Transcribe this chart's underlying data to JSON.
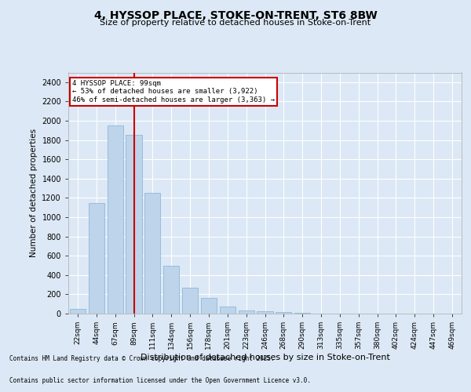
{
  "title_line1": "4, HYSSOP PLACE, STOKE-ON-TRENT, ST6 8BW",
  "title_line2": "Size of property relative to detached houses in Stoke-on-Trent",
  "xlabel": "Distribution of detached houses by size in Stoke-on-Trent",
  "ylabel": "Number of detached properties",
  "categories": [
    "22sqm",
    "44sqm",
    "67sqm",
    "89sqm",
    "111sqm",
    "134sqm",
    "156sqm",
    "178sqm",
    "201sqm",
    "223sqm",
    "246sqm",
    "268sqm",
    "290sqm",
    "313sqm",
    "335sqm",
    "357sqm",
    "380sqm",
    "402sqm",
    "424sqm",
    "447sqm",
    "469sqm"
  ],
  "values": [
    50,
    1150,
    1950,
    1850,
    1250,
    500,
    270,
    160,
    70,
    30,
    25,
    20,
    5,
    2,
    1,
    0,
    0,
    0,
    0,
    0,
    0
  ],
  "bar_color": "#bdd4ea",
  "bar_edge_color": "#8fb8d8",
  "vline_color": "#cc0000",
  "vline_x": 3.0,
  "annotation_text": "4 HYSSOP PLACE: 99sqm\n← 53% of detached houses are smaller (3,922)\n46% of semi-detached houses are larger (3,363) →",
  "annotation_box_color": "#ffffff",
  "annotation_box_edge": "#cc0000",
  "ylim": [
    0,
    2500
  ],
  "yticks": [
    0,
    200,
    400,
    600,
    800,
    1000,
    1200,
    1400,
    1600,
    1800,
    2000,
    2200,
    2400
  ],
  "bg_color": "#dce8f5",
  "plot_bg_color": "#dce8f5",
  "footer_line1": "Contains HM Land Registry data © Crown copyright and database right 2025.",
  "footer_line2": "Contains public sector information licensed under the Open Government Licence v3.0."
}
